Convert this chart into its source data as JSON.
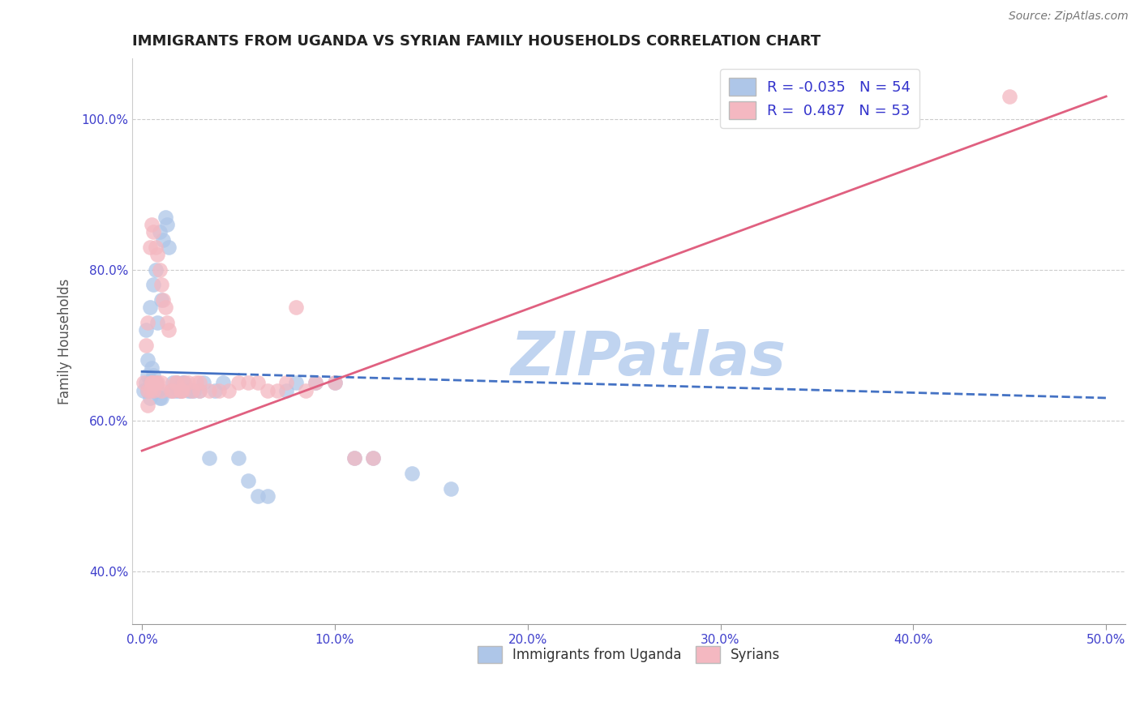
{
  "title": "IMMIGRANTS FROM UGANDA VS SYRIAN FAMILY HOUSEHOLDS CORRELATION CHART",
  "source": "Source: ZipAtlas.com",
  "xlabel": "",
  "ylabel": "Family Households",
  "xlim": [
    -0.5,
    51.0
  ],
  "ylim": [
    33.0,
    108.0
  ],
  "xticks": [
    0.0,
    10.0,
    20.0,
    30.0,
    40.0,
    50.0
  ],
  "yticks": [
    40.0,
    60.0,
    80.0,
    100.0
  ],
  "ytick_labels": [
    "40.0%",
    "60.0%",
    "80.0%",
    "100.0%"
  ],
  "xtick_labels": [
    "0.0%",
    "10.0%",
    "20.0%",
    "30.0%",
    "40.0%",
    "50.0%"
  ],
  "uganda_color": "#aec6e8",
  "syria_color": "#f4b8c1",
  "uganda_R": -0.035,
  "uganda_N": 54,
  "syria_R": 0.487,
  "syria_N": 53,
  "uganda_line_color": "#4472c4",
  "syria_line_color": "#e06080",
  "watermark": "ZIPatlas",
  "watermark_color": "#c0d4f0",
  "legend_label_uganda": "Immigrants from Uganda",
  "legend_label_syria": "Syrians",
  "uganda_x": [
    0.1,
    0.2,
    0.2,
    0.3,
    0.3,
    0.3,
    0.4,
    0.4,
    0.4,
    0.5,
    0.5,
    0.6,
    0.6,
    0.6,
    0.7,
    0.7,
    0.8,
    0.8,
    0.9,
    0.9,
    1.0,
    1.0,
    1.1,
    1.2,
    1.3,
    1.4,
    1.5,
    1.6,
    1.7,
    1.8,
    1.9,
    2.0,
    2.1,
    2.2,
    2.4,
    2.5,
    2.7,
    3.0,
    3.2,
    3.5,
    3.8,
    4.2,
    5.0,
    5.5,
    6.0,
    6.5,
    7.5,
    8.0,
    9.0,
    10.0,
    11.0,
    12.0,
    14.0,
    16.0
  ],
  "uganda_y": [
    64.0,
    65.0,
    72.0,
    64.0,
    66.0,
    68.0,
    63.0,
    65.0,
    75.0,
    65.0,
    67.0,
    64.0,
    66.0,
    78.0,
    65.0,
    80.0,
    64.0,
    73.0,
    63.0,
    85.0,
    63.0,
    76.0,
    84.0,
    87.0,
    86.0,
    83.0,
    64.0,
    65.0,
    64.0,
    65.0,
    64.0,
    64.0,
    65.0,
    65.0,
    64.0,
    64.0,
    64.0,
    64.0,
    65.0,
    55.0,
    64.0,
    65.0,
    55.0,
    52.0,
    50.0,
    50.0,
    64.0,
    65.0,
    65.0,
    65.0,
    55.0,
    55.0,
    53.0,
    51.0
  ],
  "syria_x": [
    0.1,
    0.2,
    0.3,
    0.3,
    0.4,
    0.4,
    0.5,
    0.5,
    0.6,
    0.6,
    0.7,
    0.7,
    0.8,
    0.8,
    0.9,
    1.0,
    1.0,
    1.1,
    1.2,
    1.3,
    1.4,
    1.5,
    1.6,
    1.7,
    1.8,
    2.0,
    2.1,
    2.2,
    2.4,
    2.6,
    2.8,
    3.0,
    3.5,
    4.0,
    4.5,
    5.0,
    5.5,
    6.0,
    6.5,
    7.0,
    7.5,
    8.0,
    8.5,
    9.0,
    10.0,
    11.0,
    12.0,
    0.3,
    0.5,
    1.0,
    2.0,
    3.0,
    45.0
  ],
  "syria_y": [
    65.0,
    70.0,
    64.0,
    73.0,
    64.0,
    83.0,
    65.0,
    86.0,
    64.0,
    85.0,
    65.0,
    83.0,
    65.0,
    82.0,
    80.0,
    64.0,
    78.0,
    76.0,
    75.0,
    73.0,
    72.0,
    64.0,
    64.0,
    65.0,
    65.0,
    64.0,
    64.0,
    65.0,
    65.0,
    64.0,
    65.0,
    64.0,
    64.0,
    64.0,
    64.0,
    65.0,
    65.0,
    65.0,
    64.0,
    64.0,
    65.0,
    75.0,
    64.0,
    65.0,
    65.0,
    55.0,
    55.0,
    62.0,
    65.0,
    65.0,
    64.0,
    65.0,
    103.0
  ],
  "uganda_line_x": [
    0.0,
    50.0
  ],
  "uganda_line_y": [
    66.5,
    63.0
  ],
  "syria_line_x": [
    0.0,
    50.0
  ],
  "syria_line_y": [
    56.0,
    103.0
  ]
}
